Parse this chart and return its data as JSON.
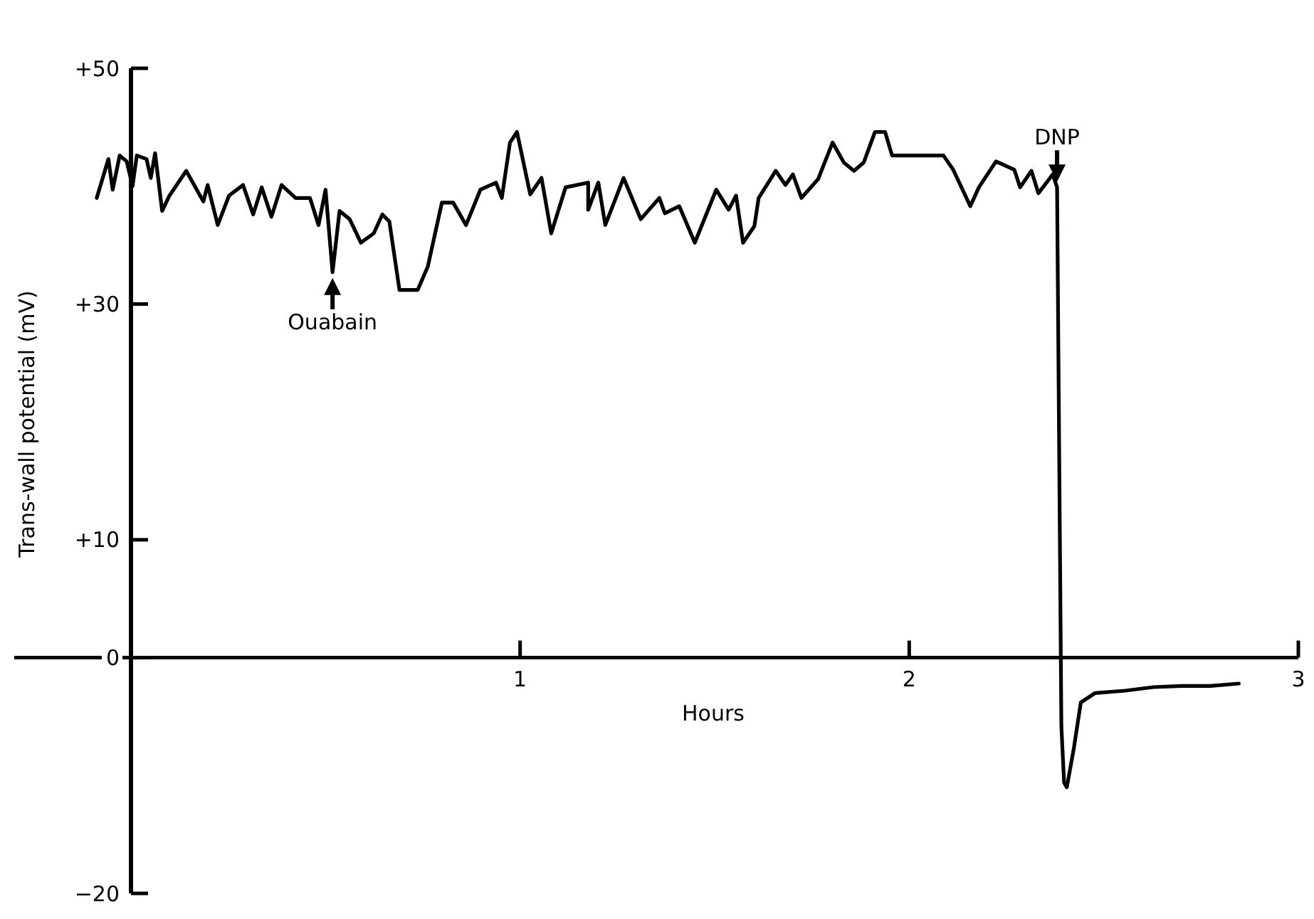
{
  "chart_data": {
    "type": "line",
    "xlabel": "Hours",
    "ylabel": "Trans-wall potential (mV)",
    "xlim": [
      -0.3,
      3
    ],
    "xticks": [
      1,
      2,
      3
    ],
    "ylim": [
      -20,
      50
    ],
    "yticks": [
      {
        "value": -20,
        "label": "−20"
      },
      0,
      {
        "value": 10,
        "label": "+10"
      },
      {
        "value": 30,
        "label": "+30"
      },
      {
        "value": 50,
        "label": "+50"
      }
    ],
    "x": [
      -0.088,
      -0.058,
      -0.047,
      -0.029,
      -0.011,
      0.004,
      0.015,
      0.04,
      0.051,
      0.062,
      0.08,
      0.099,
      0.142,
      0.186,
      0.197,
      0.223,
      0.252,
      0.288,
      0.314,
      0.336,
      0.361,
      0.387,
      0.423,
      0.46,
      0.482,
      0.5,
      0.518,
      0.536,
      0.562,
      0.591,
      0.624,
      0.646,
      0.664,
      0.69,
      0.737,
      0.763,
      0.799,
      0.828,
      0.861,
      0.898,
      0.938,
      0.953,
      0.974,
      0.992,
      1.026,
      1.055,
      1.08,
      1.117,
      1.175,
      1.175,
      1.201,
      1.219,
      1.266,
      1.31,
      1.358,
      1.372,
      1.409,
      1.449,
      1.504,
      1.536,
      1.555,
      1.573,
      1.602,
      1.613,
      1.657,
      1.682,
      1.701,
      1.723,
      1.766,
      1.803,
      1.832,
      1.858,
      1.883,
      1.912,
      1.938,
      1.956,
      1.996,
      2.04,
      2.088,
      2.113,
      2.157,
      2.179,
      2.223,
      2.27,
      2.285,
      2.314,
      2.332,
      2.369,
      2.38,
      2.391,
      2.398,
      2.405,
      2.423,
      2.441,
      2.478,
      2.555,
      2.628,
      2.701,
      2.774,
      2.847
    ],
    "values": [
      39.0,
      42.3,
      39.7,
      42.6,
      42.1,
      40.0,
      42.6,
      42.3,
      40.7,
      42.8,
      37.9,
      39.2,
      41.3,
      38.7,
      40.1,
      36.7,
      39.2,
      40.1,
      37.6,
      39.9,
      37.4,
      40.1,
      39.0,
      39.0,
      36.7,
      39.7,
      32.7,
      37.9,
      37.2,
      35.2,
      36.0,
      37.6,
      37.0,
      31.2,
      31.2,
      33.2,
      38.6,
      38.6,
      36.7,
      39.7,
      40.3,
      39.0,
      43.7,
      44.6,
      39.3,
      40.7,
      36.0,
      39.9,
      40.3,
      38.0,
      40.3,
      36.7,
      40.7,
      37.2,
      39.0,
      37.7,
      38.3,
      35.2,
      39.7,
      38.0,
      39.2,
      35.2,
      36.6,
      39.0,
      41.3,
      40.1,
      41.0,
      39.0,
      40.6,
      43.7,
      42.0,
      41.3,
      42.0,
      44.6,
      44.6,
      42.6,
      42.6,
      42.6,
      42.6,
      41.4,
      38.3,
      39.9,
      42.1,
      41.4,
      39.9,
      41.3,
      39.4,
      41.0,
      39.9,
      -5.8,
      -10.6,
      -11.0,
      -7.7,
      -3.8,
      -3.0,
      -2.8,
      -2.5,
      -2.4,
      -2.4,
      -2.2
    ],
    "color": "#000000",
    "annotations": [
      {
        "text": "Ouabain",
        "x": 0.518,
        "y": 32.7
      },
      {
        "text": "DNP",
        "x": 2.38,
        "y": 39.9
      }
    ]
  }
}
